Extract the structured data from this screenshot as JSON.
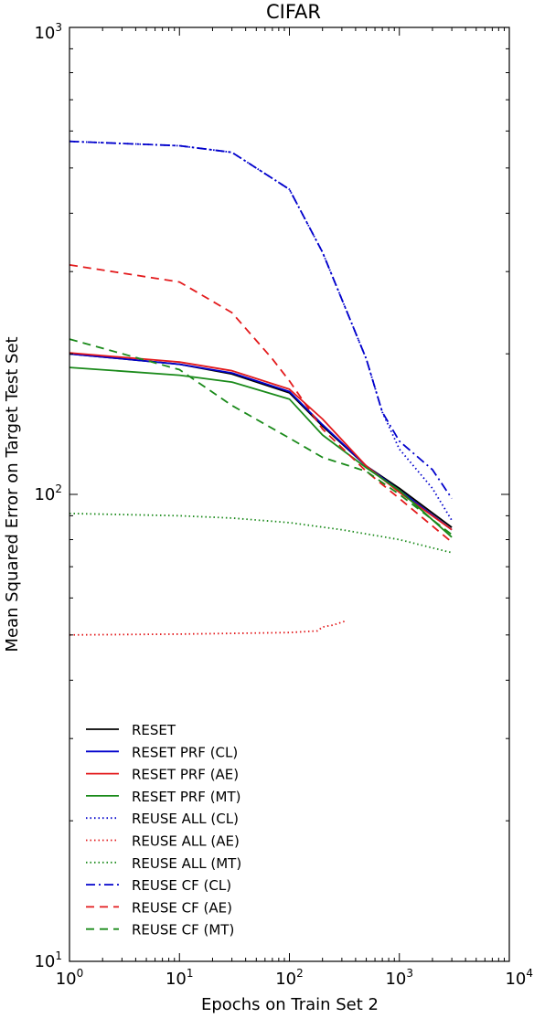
{
  "chart_data": {
    "type": "line",
    "title": "CIFAR",
    "xlabel": "Epochs on Train Set 2",
    "ylabel": "Mean Squared Error on Target Test Set",
    "xscale": "log",
    "yscale": "log",
    "xlim": [
      1,
      10000
    ],
    "ylim": [
      10,
      1000
    ],
    "x_ticks": [
      {
        "base": "10",
        "exp": "0",
        "value": 1
      },
      {
        "base": "10",
        "exp": "1",
        "value": 10
      },
      {
        "base": "10",
        "exp": "2",
        "value": 100
      },
      {
        "base": "10",
        "exp": "3",
        "value": 1000
      },
      {
        "base": "10",
        "exp": "4",
        "value": 10000
      }
    ],
    "y_ticks": [
      {
        "base": "10",
        "exp": "1",
        "value": 10
      },
      {
        "base": "10",
        "exp": "2",
        "value": 100
      },
      {
        "base": "10",
        "exp": "3",
        "value": 1000
      }
    ],
    "grid": false,
    "legend_position": "bottom-left",
    "series": [
      {
        "name": "RESET",
        "color": "#000000",
        "style": "solid",
        "x": [
          1,
          10,
          30,
          100,
          200,
          500,
          1000,
          3000
        ],
        "y": [
          200,
          190,
          181,
          165,
          140,
          115,
          103,
          85
        ]
      },
      {
        "name": "RESET PRF (CL)",
        "color": "#0000cc",
        "style": "solid",
        "x": [
          1,
          10,
          30,
          100,
          200,
          500,
          1000,
          3000
        ],
        "y": [
          200,
          190,
          182,
          166,
          141,
          115,
          102,
          84
        ]
      },
      {
        "name": "RESET PRF (AE)",
        "color": "#e31a1c",
        "style": "solid",
        "x": [
          1,
          10,
          30,
          100,
          200,
          500,
          1000,
          3000
        ],
        "y": [
          201,
          192,
          184,
          168,
          145,
          115,
          101,
          84
        ]
      },
      {
        "name": "RESET PRF (MT)",
        "color": "#1a8a1a",
        "style": "solid",
        "x": [
          1,
          10,
          30,
          100,
          200,
          500,
          1000,
          3000
        ],
        "y": [
          187,
          180,
          174,
          160,
          134,
          114,
          102,
          81
        ]
      },
      {
        "name": "REUSE ALL (CL)",
        "color": "#0000cc",
        "style": "dotted",
        "x": [
          1,
          10,
          30,
          100,
          200,
          500,
          700,
          1000,
          2000,
          3000
        ],
        "y": [
          570,
          558,
          540,
          450,
          330,
          195,
          150,
          125,
          103,
          88
        ]
      },
      {
        "name": "REUSE ALL (AE)",
        "color": "#e31a1c",
        "style": "dotted",
        "x": [
          1,
          10,
          30,
          100,
          180,
          200,
          250,
          320
        ],
        "y": [
          50,
          50.2,
          50.4,
          50.6,
          51,
          52,
          52.5,
          53.5
        ]
      },
      {
        "name": "REUSE ALL (MT)",
        "color": "#1a8a1a",
        "style": "dotted",
        "x": [
          1,
          10,
          30,
          100,
          300,
          1000,
          3000
        ],
        "y": [
          91,
          90,
          89,
          87,
          84,
          80,
          75
        ]
      },
      {
        "name": "REUSE CF (CL)",
        "color": "#0000cc",
        "style": "dashdot",
        "x": [
          1,
          10,
          30,
          100,
          200,
          500,
          700,
          1000,
          2000,
          3000
        ],
        "y": [
          570,
          558,
          540,
          450,
          330,
          195,
          150,
          130,
          113,
          98
        ]
      },
      {
        "name": "REUSE CF (AE)",
        "color": "#e31a1c",
        "style": "dashed",
        "x": [
          1,
          10,
          30,
          70,
          100,
          200,
          500,
          1000,
          3000
        ],
        "y": [
          310,
          285,
          245,
          195,
          175,
          138,
          112,
          98,
          79
        ]
      },
      {
        "name": "REUSE CF (MT)",
        "color": "#1a8a1a",
        "style": "dashed",
        "x": [
          1,
          10,
          30,
          100,
          200,
          500,
          1000,
          3000
        ],
        "y": [
          215,
          185,
          155,
          132,
          120,
          112,
          100,
          82
        ]
      }
    ]
  }
}
